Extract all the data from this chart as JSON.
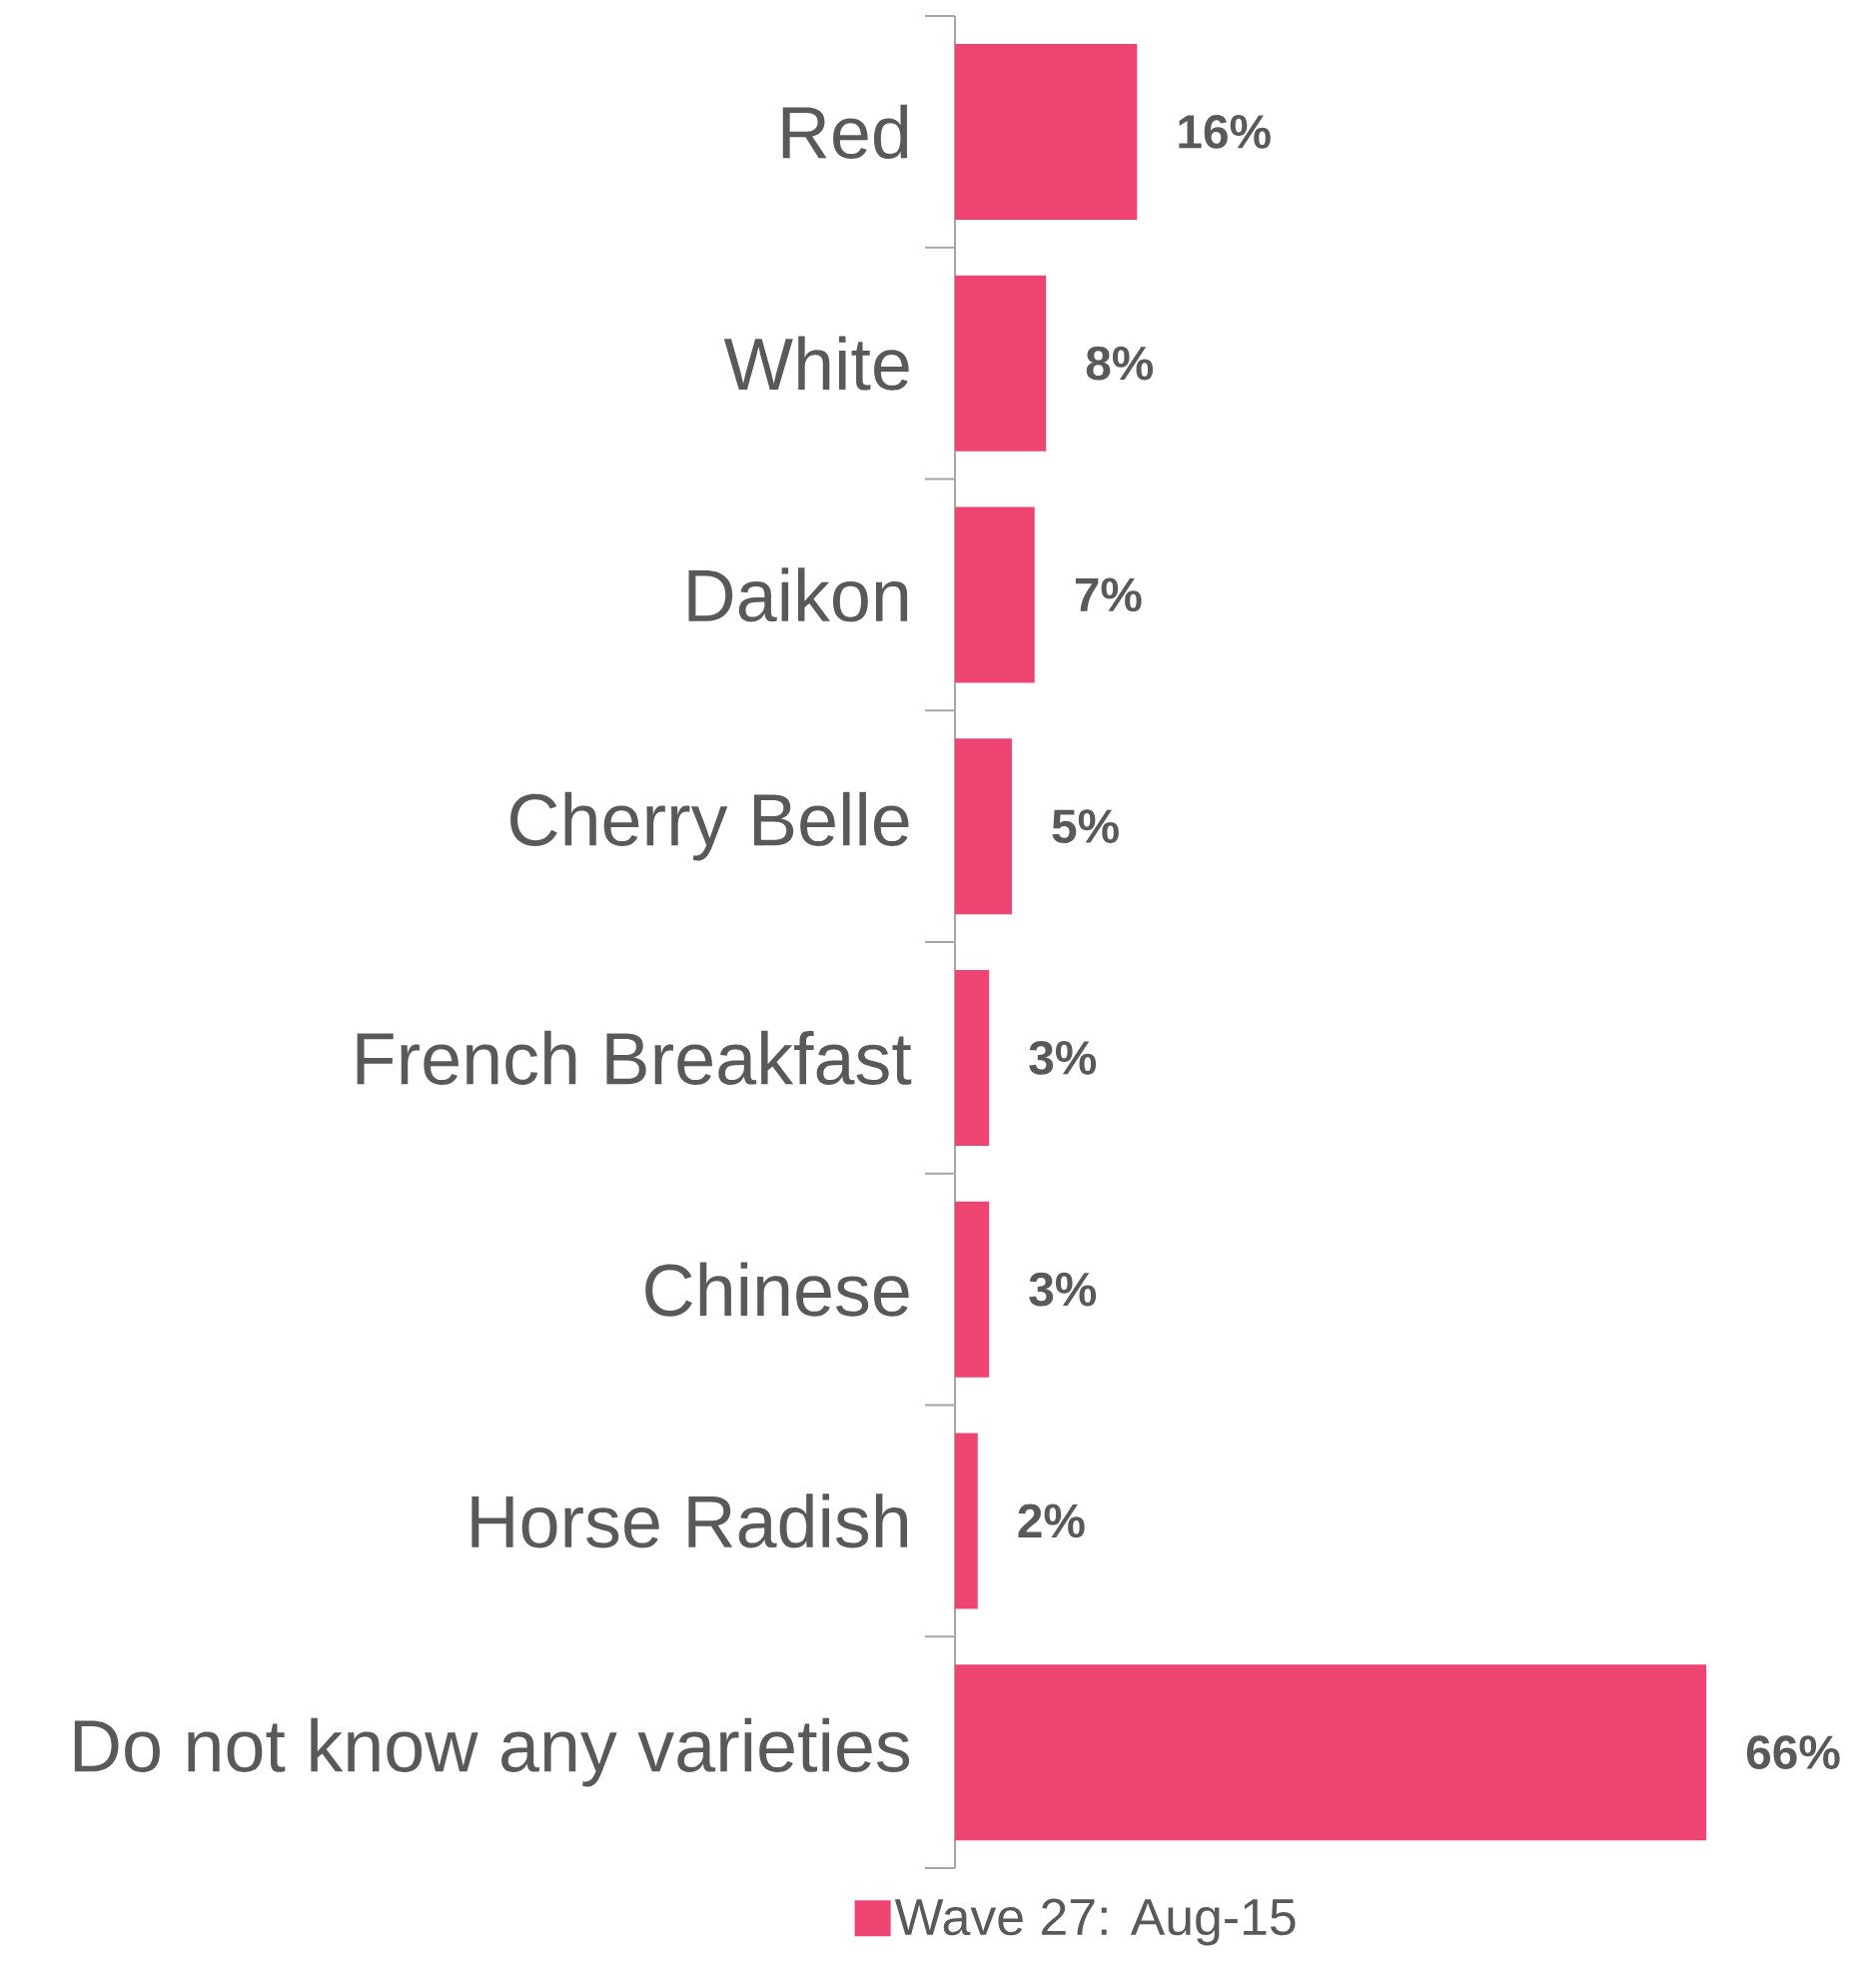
{
  "chart_data": {
    "type": "bar",
    "orientation": "horizontal",
    "categories": [
      "Red",
      "White",
      "Daikon",
      "Cherry Belle",
      "French Breakfast",
      "Chinese",
      "Horse Radish",
      "Do not know any varieties"
    ],
    "series": [
      {
        "name": "Wave 27: Aug-15",
        "color": "#ee4472",
        "values": [
          16,
          8,
          7,
          5,
          3,
          3,
          2,
          66
        ],
        "value_labels": [
          "16%",
          "8%",
          "7%",
          "5%",
          "3%",
          "3%",
          "2%",
          "66%"
        ]
      }
    ],
    "legend": "bottom"
  }
}
